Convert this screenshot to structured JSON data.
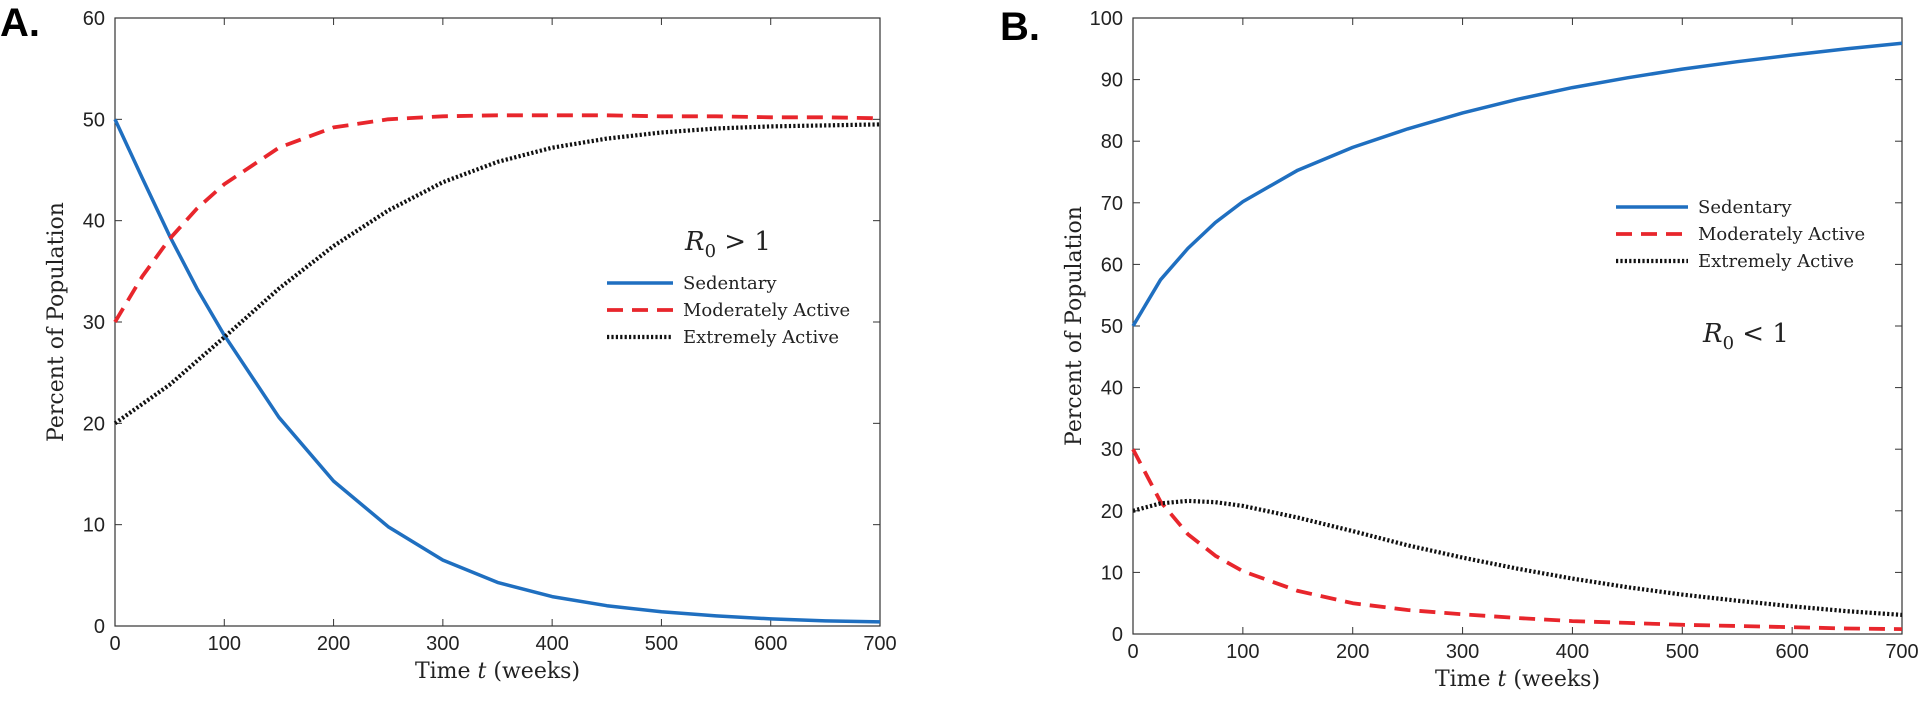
{
  "chart_data": [
    {
      "panel": "A.",
      "type": "line",
      "xlabel": "Time t (weeks)",
      "ylabel": "Percent of Population",
      "xlim": [
        0,
        700
      ],
      "ylim": [
        0,
        60
      ],
      "xticks": [
        0,
        100,
        200,
        300,
        400,
        500,
        600,
        700
      ],
      "yticks": [
        0,
        10,
        20,
        30,
        40,
        50,
        60
      ],
      "annotation": "R0 > 1",
      "legend_position": "center-right",
      "grid": false,
      "series": [
        {
          "name": "Sedentary",
          "color": "#1f6fc0",
          "style": "solid",
          "x": [
            0,
            25,
            50,
            75,
            100,
            150,
            200,
            250,
            300,
            350,
            400,
            450,
            500,
            550,
            600,
            650,
            700
          ],
          "y": [
            50,
            44.2,
            38.5,
            33.3,
            28.7,
            20.6,
            14.3,
            9.8,
            6.5,
            4.3,
            2.9,
            2.0,
            1.4,
            1.0,
            0.7,
            0.5,
            0.4
          ]
        },
        {
          "name": "Moderately Active",
          "color": "#e8262c",
          "style": "dashed",
          "x": [
            0,
            25,
            50,
            75,
            100,
            150,
            200,
            250,
            300,
            350,
            400,
            450,
            500,
            550,
            600,
            650,
            700
          ],
          "y": [
            30,
            34.5,
            38.2,
            41.2,
            43.6,
            47.2,
            49.2,
            50.0,
            50.3,
            50.4,
            50.4,
            50.4,
            50.3,
            50.3,
            50.2,
            50.2,
            50.1
          ]
        },
        {
          "name": "Extremely Active",
          "color": "#111111",
          "style": "dotted",
          "x": [
            0,
            50,
            100,
            150,
            200,
            250,
            300,
            350,
            400,
            450,
            500,
            550,
            600,
            650,
            700
          ],
          "y": [
            20,
            23.8,
            28.5,
            33.3,
            37.5,
            41.0,
            43.8,
            45.8,
            47.2,
            48.1,
            48.7,
            49.1,
            49.3,
            49.4,
            49.5
          ]
        }
      ]
    },
    {
      "panel": "B.",
      "type": "line",
      "xlabel": "Time t (weeks)",
      "ylabel": "Percent of Population",
      "xlim": [
        0,
        700
      ],
      "ylim": [
        0,
        100
      ],
      "xticks": [
        0,
        100,
        200,
        300,
        400,
        500,
        600,
        700
      ],
      "yticks": [
        0,
        10,
        20,
        30,
        40,
        50,
        60,
        70,
        80,
        90,
        100
      ],
      "annotation": "R0 < 1",
      "legend_position": "upper-right",
      "grid": false,
      "series": [
        {
          "name": "Sedentary",
          "color": "#1f6fc0",
          "style": "solid",
          "x": [
            0,
            25,
            50,
            75,
            100,
            150,
            200,
            250,
            300,
            350,
            400,
            450,
            500,
            550,
            600,
            650,
            700
          ],
          "y": [
            50,
            57.5,
            62.6,
            66.8,
            70.2,
            75.3,
            79.0,
            82.0,
            84.6,
            86.8,
            88.7,
            90.3,
            91.7,
            92.9,
            94.0,
            95.0,
            95.9
          ]
        },
        {
          "name": "Moderately Active",
          "color": "#e8262c",
          "style": "dashed",
          "x": [
            0,
            25,
            50,
            75,
            100,
            150,
            200,
            250,
            300,
            350,
            400,
            450,
            500,
            550,
            600,
            650,
            700
          ],
          "y": [
            30,
            21.5,
            16.2,
            12.7,
            10.2,
            7.0,
            5.0,
            3.9,
            3.2,
            2.6,
            2.1,
            1.8,
            1.5,
            1.3,
            1.1,
            0.9,
            0.8
          ]
        },
        {
          "name": "Extremely Active",
          "color": "#111111",
          "style": "dotted",
          "x": [
            0,
            25,
            50,
            75,
            100,
            150,
            200,
            250,
            300,
            350,
            400,
            450,
            500,
            550,
            600,
            650,
            700
          ],
          "y": [
            20,
            21.2,
            21.6,
            21.4,
            20.8,
            18.9,
            16.7,
            14.4,
            12.4,
            10.6,
            9.0,
            7.6,
            6.4,
            5.4,
            4.5,
            3.7,
            3.1
          ]
        }
      ]
    }
  ]
}
